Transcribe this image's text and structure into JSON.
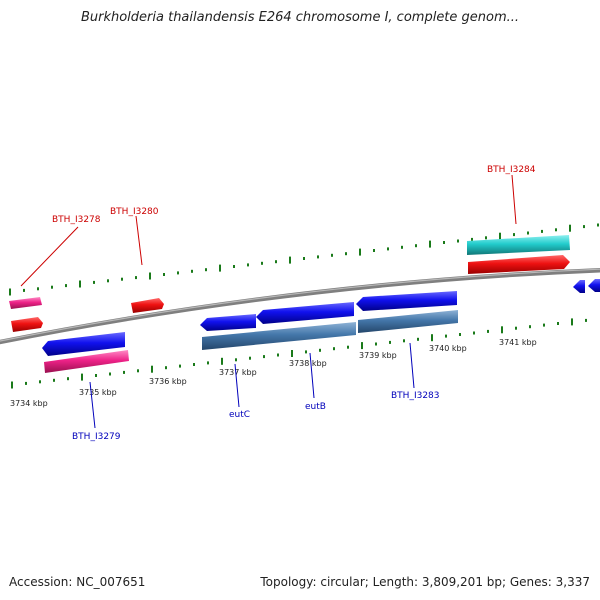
{
  "title": "Burkholderia thailandensis E264 chromosome I, complete genom...",
  "footer": {
    "accession": "Accession: NC_007651",
    "summary": "Topology: circular; Length: 3,809,201 bp; Genes: 3,337"
  },
  "scale": {
    "unit": "kbp",
    "tick_labels": [
      "3734 kbp",
      "3735 kbp",
      "3736 kbp",
      "3737 kbp",
      "3738 kbp",
      "3739 kbp",
      "3740 kbp",
      "3741 kbp"
    ]
  },
  "gene_labels": {
    "top": [
      "BTH_I3278",
      "BTH_I3280",
      "BTH_I3284"
    ],
    "bottom": [
      "BTH_I3279",
      "eutC",
      "eutB",
      "BTH_I3283"
    ]
  },
  "colors": {
    "backbone": "#7f7f7f",
    "tick_mark": "#1a7a1a",
    "forward_gene": "#ee1111",
    "reverse_gene": "#1111ee",
    "forward_feature": "#ee2288",
    "reverse_feature": "#4477aa",
    "highlight_feature": "#22cccc",
    "label_top": "#cc0000",
    "label_bottom": "#0000bb"
  }
}
